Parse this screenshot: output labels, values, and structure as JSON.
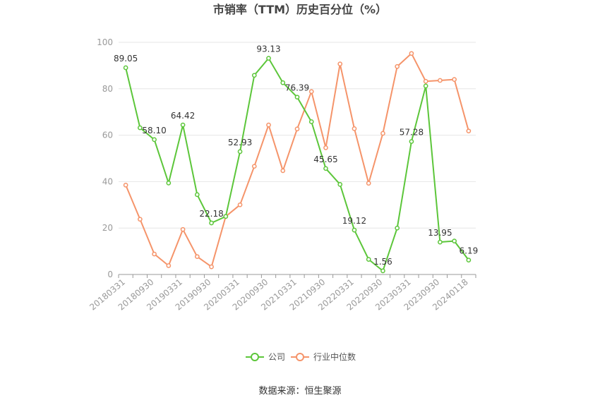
{
  "chart_data": {
    "type": "line",
    "title": "市销率（TTM）历史百分位（%）",
    "x": [
      "20180331",
      "20180630",
      "20180930",
      "20181231",
      "20190331",
      "20190630",
      "20190930",
      "20191231",
      "20200331",
      "20200630",
      "20200930",
      "20201231",
      "20210331",
      "20210630",
      "20210930",
      "20211231",
      "20220331",
      "20220630",
      "20220930",
      "20221231",
      "20230331",
      "20230630",
      "20230930",
      "20231231",
      "20240118"
    ],
    "x_tick_labels": [
      "20180331",
      "20180930",
      "20190331",
      "20190930",
      "20200331",
      "20200930",
      "20210331",
      "20210930",
      "20220331",
      "20220930",
      "20230331",
      "20230930",
      "20240118"
    ],
    "ylim": [
      0,
      100
    ],
    "y_ticks": [
      0,
      20,
      40,
      60,
      80,
      100
    ],
    "grid": true,
    "legend_position": "bottom",
    "series": [
      {
        "name": "公司",
        "color": "#5cc63a",
        "values": [
          89.05,
          63.2,
          58.1,
          39.4,
          64.42,
          34.4,
          22.18,
          25.0,
          52.93,
          85.8,
          93.13,
          82.6,
          76.39,
          65.8,
          45.65,
          38.8,
          19.12,
          6.5,
          1.56,
          20.0,
          57.28,
          81.2,
          13.95,
          14.4,
          6.19
        ],
        "labels": {
          "0": "89.05",
          "2": "58.10",
          "4": "64.42",
          "6": "22.18",
          "8": "52.93",
          "10": "93.13",
          "12": "76.39",
          "14": "45.65",
          "16": "19.12",
          "18": "1.56",
          "20": "57.28",
          "22": "13.95",
          "24": "6.19"
        }
      },
      {
        "name": "行业中位数",
        "color": "#f5946a",
        "values": [
          38.5,
          23.8,
          8.8,
          3.8,
          19.4,
          7.7,
          3.3,
          25.0,
          30.0,
          46.6,
          64.4,
          44.7,
          62.7,
          78.8,
          54.6,
          90.7,
          62.8,
          39.3,
          60.8,
          89.6,
          95.2,
          83.2,
          83.6,
          84.0,
          61.8
        ]
      }
    ]
  },
  "source_text": "数据来源：恒生聚源"
}
